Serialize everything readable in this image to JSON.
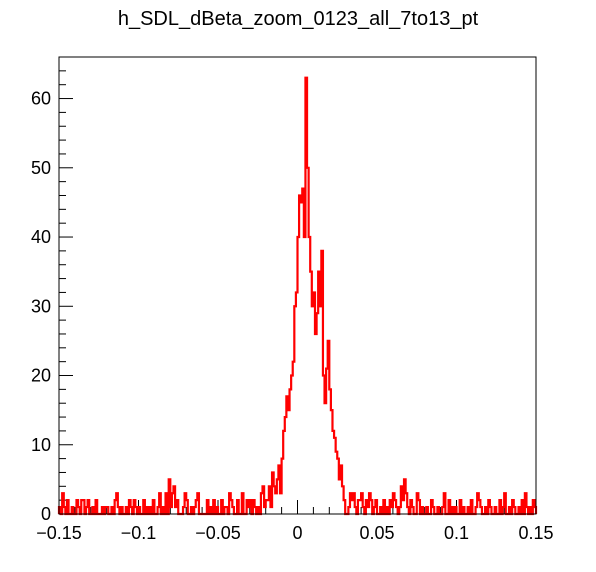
{
  "chart_data": {
    "type": "histogram",
    "title": "h_SDL_dBeta_zoom_0123_all_7to13_pt",
    "xlabel": "",
    "ylabel": "",
    "xlim": [
      -0.15,
      0.15
    ],
    "ylim": [
      0,
      66
    ],
    "x_ticks": [
      "−0.15",
      "−0.1",
      "−0.05",
      "0",
      "0.05",
      "0.1",
      "0.15"
    ],
    "x_tick_values": [
      -0.15,
      -0.1,
      -0.05,
      0,
      0.05,
      0.1,
      0.15
    ],
    "y_ticks": [
      "0",
      "10",
      "20",
      "30",
      "40",
      "50",
      "60"
    ],
    "y_tick_values": [
      0,
      10,
      20,
      30,
      40,
      50,
      60
    ],
    "line_color": "#ff0000",
    "grid": false,
    "legend": "none",
    "series": [
      {
        "x_start": -0.15,
        "bin_width": 0.001,
        "counts": [
          1,
          0,
          3,
          1,
          0,
          2,
          0,
          0,
          1,
          0,
          0,
          2,
          1,
          0,
          2,
          2,
          0,
          1,
          2,
          0,
          0,
          1,
          0,
          2,
          0,
          0,
          0,
          1,
          0,
          1,
          1,
          0,
          0,
          1,
          0,
          2,
          3,
          1,
          0,
          1,
          0,
          0,
          1,
          0,
          2,
          1,
          0,
          2,
          1,
          0,
          1,
          0,
          0,
          2,
          0,
          1,
          0,
          1,
          0,
          2,
          0,
          0,
          1,
          3,
          0,
          1,
          0,
          3,
          0,
          5,
          1,
          3,
          4,
          1,
          2,
          0,
          0,
          0,
          1,
          3,
          2,
          0,
          0,
          1,
          0,
          1,
          2,
          3,
          0,
          0,
          0,
          0,
          0,
          2,
          0,
          1,
          0,
          2,
          0,
          1,
          0,
          0,
          2,
          0,
          1,
          1,
          0,
          3,
          2,
          1,
          0,
          0,
          2,
          0,
          0,
          3,
          0,
          0,
          2,
          1,
          2,
          0,
          2,
          1,
          0,
          1,
          0,
          3,
          4,
          1,
          2,
          2,
          4,
          1,
          6,
          4,
          3,
          5,
          7,
          3,
          8,
          12,
          14,
          17,
          15,
          18,
          20,
          22,
          30,
          32,
          40,
          46,
          45,
          47,
          40,
          63,
          50,
          40,
          35,
          30,
          32,
          26,
          29,
          35,
          30,
          38,
          20,
          16,
          21,
          25,
          18,
          15,
          12,
          11,
          9,
          8,
          5,
          7,
          4,
          2,
          0,
          0,
          1,
          3,
          2,
          3,
          1,
          0,
          2,
          2,
          3,
          1,
          0,
          2,
          1,
          3,
          2,
          0,
          1,
          2,
          0,
          0,
          1,
          0,
          2,
          0,
          1,
          0,
          2,
          1,
          3,
          2,
          1,
          0,
          1,
          4,
          2,
          5,
          3,
          1,
          0,
          2,
          1,
          0,
          0,
          3,
          2,
          0,
          1,
          0,
          0,
          1,
          0,
          0,
          2,
          1,
          0,
          0,
          1,
          0,
          0,
          1,
          3,
          0,
          0,
          2,
          0,
          1,
          0,
          1,
          0,
          0,
          2,
          0,
          1,
          0,
          0,
          1,
          0,
          2,
          0,
          0,
          1,
          3,
          2,
          1,
          0,
          0,
          1,
          0,
          2,
          1,
          0,
          0,
          1,
          0,
          0,
          2,
          0,
          1,
          3,
          0,
          0,
          1,
          0,
          2,
          1,
          0,
          0,
          1,
          0,
          2,
          0,
          3,
          1,
          0,
          1,
          0,
          2,
          1
        ]
      }
    ]
  }
}
